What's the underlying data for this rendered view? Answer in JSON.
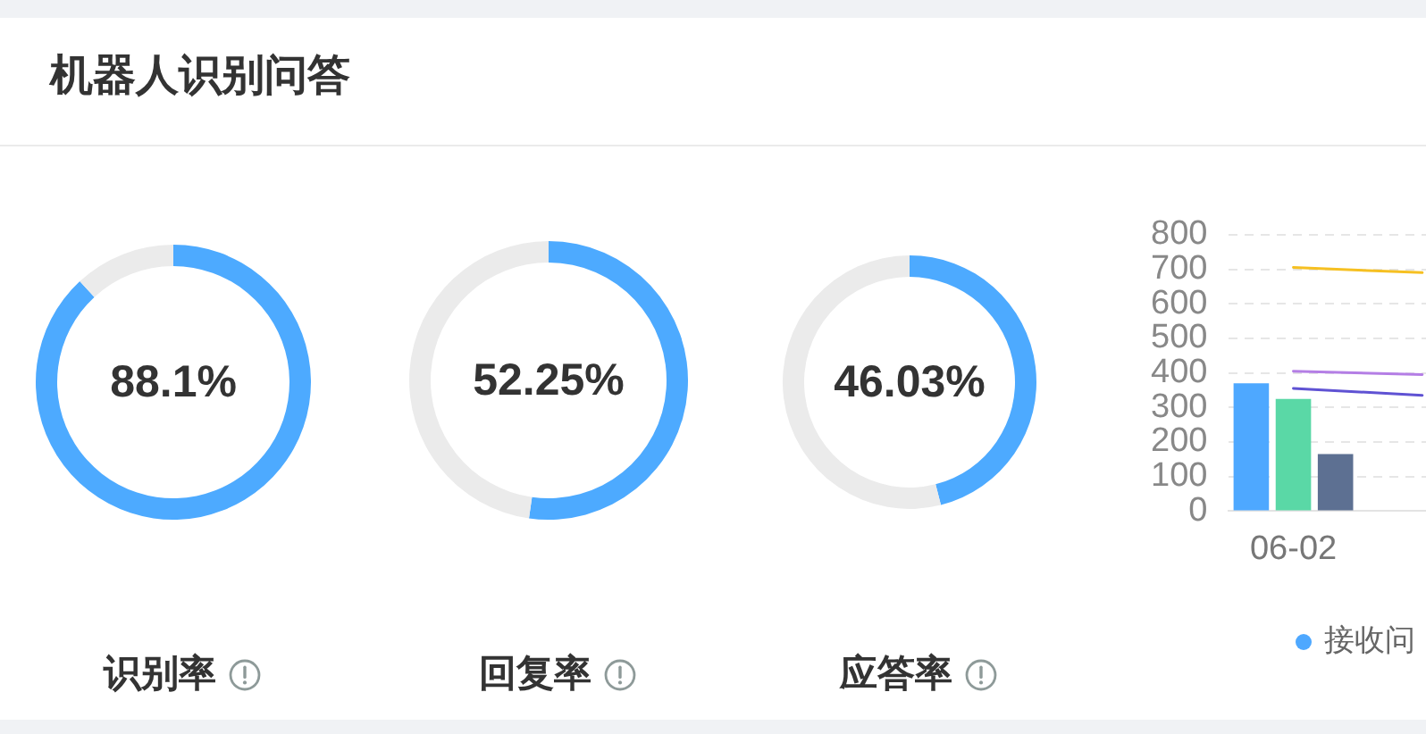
{
  "chart_data": [
    {
      "type": "other",
      "title": "机器人识别问答"
    },
    {
      "type": "donut",
      "title": "识别率",
      "categories": [
        null,
        null
      ],
      "values": [
        88.1,
        11.9
      ],
      "colors": [
        "#4daaff",
        "#ebebeb"
      ],
      "annotations": [
        "88.1%"
      ]
    },
    {
      "type": "donut",
      "title": "回复率",
      "categories": [
        null,
        null
      ],
      "values": [
        52.25,
        47.75
      ],
      "colors": [
        "#4daaff",
        "#ebebeb"
      ],
      "annotations": [
        "52.25%"
      ]
    },
    {
      "type": "donut",
      "title": "应答率",
      "categories": [
        null,
        null
      ],
      "values": [
        46.03,
        53.97
      ],
      "colors": [
        "#4daaff",
        "#ebebeb"
      ],
      "annotations": [
        "46.03%"
      ]
    },
    {
      "type": "bar",
      "categories": [
        "06-02",
        null
      ],
      "series": [
        {
          "name": "接收问",
          "color": "#4ea8ff",
          "values": [
            370,
            null
          ]
        },
        {
          "color": "#5ad8a6",
          "values": [
            325,
            null
          ]
        },
        {
          "color": "#5d7092",
          "values": [
            165,
            null
          ]
        },
        {
          "type": "line",
          "color": "#f6c022",
          "values": [
            705,
            690
          ]
        },
        {
          "type": "line",
          "color": "#b47ee5",
          "values": [
            405,
            395
          ]
        },
        {
          "type": "line",
          "color": "#5f52d3",
          "values": [
            355,
            335
          ]
        }
      ],
      "ylim": [
        0,
        800
      ],
      "yticks": [
        0,
        100,
        200,
        300,
        400,
        500,
        600,
        700,
        800
      ],
      "grid": "y",
      "legend": "bottom",
      "marker": "none"
    }
  ]
}
